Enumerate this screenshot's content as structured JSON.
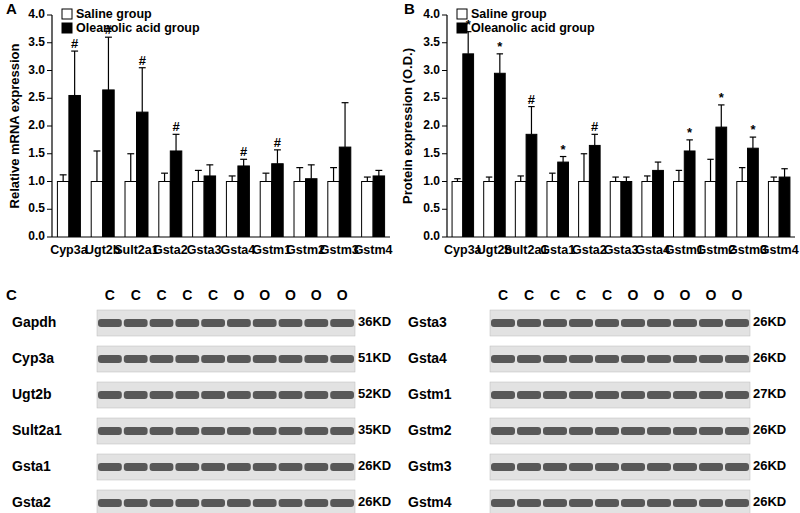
{
  "chart_data": [
    {
      "type": "bar",
      "title": "A",
      "ylabel": "Relative mRNA expression",
      "categories": [
        "Cyp3a",
        "Ugt2b",
        "Sult2a1",
        "Gsta2",
        "Gsta3",
        "Gsta4",
        "Gstm1",
        "Gstm2",
        "Gstm3",
        "Gstm4"
      ],
      "series": [
        {
          "name": "Saline group",
          "color": "#ffffff",
          "values": [
            1.0,
            1.0,
            1.0,
            1.0,
            1.0,
            1.0,
            1.0,
            1.0,
            1.0,
            1.0
          ],
          "errors": [
            0.12,
            0.55,
            0.5,
            0.15,
            0.2,
            0.1,
            0.15,
            0.25,
            0.25,
            0.08
          ]
        },
        {
          "name": "Oleanolic acid group",
          "color": "#000000",
          "values": [
            2.55,
            2.65,
            2.25,
            1.55,
            1.1,
            1.28,
            1.32,
            1.05,
            1.62,
            1.1
          ],
          "errors": [
            0.8,
            0.95,
            0.8,
            0.3,
            0.2,
            0.12,
            0.25,
            0.25,
            0.8,
            0.1
          ],
          "annotations": [
            "#",
            "#",
            "#",
            "#",
            null,
            "#",
            "#",
            null,
            null,
            null
          ]
        }
      ],
      "ylim": [
        0,
        4
      ],
      "yticks": [
        {
          "value": 0,
          "label": "0.0"
        },
        {
          "value": 0.5,
          "label": "0.5"
        },
        {
          "value": 1,
          "label": "1.0"
        },
        {
          "value": 1.5,
          "label": "1.5"
        },
        {
          "value": 2,
          "label": "2.0"
        },
        {
          "value": 2.5,
          "label": "2.5"
        },
        {
          "value": 3,
          "label": "3.0"
        },
        {
          "value": 3.5,
          "label": "3.5"
        },
        {
          "value": 4,
          "label": "4.0"
        }
      ],
      "legend": "upper left",
      "grid": false
    },
    {
      "type": "bar",
      "title": "B",
      "ylabel": "Protein expression (O.D.)",
      "categories": [
        "Cyp3a",
        "Ugt2b",
        "Sult2a1",
        "Gsta1",
        "Gsta2",
        "Gsta3",
        "Gsta4",
        "Gstm1",
        "Gstm2",
        "Gstm3",
        "Gstm4"
      ],
      "series": [
        {
          "name": "Saline group",
          "color": "#ffffff",
          "values": [
            1.0,
            1.0,
            1.0,
            1.0,
            1.0,
            1.0,
            1.0,
            1.0,
            1.0,
            1.0,
            1.0
          ],
          "errors": [
            0.05,
            0.08,
            0.1,
            0.15,
            0.5,
            0.08,
            0.1,
            0.2,
            0.4,
            0.25,
            0.08
          ]
        },
        {
          "name": "Oleanolic acid group",
          "color": "#000000",
          "values": [
            3.3,
            2.95,
            1.85,
            1.35,
            1.65,
            1.0,
            1.2,
            1.55,
            1.98,
            1.6,
            1.08
          ],
          "errors": [
            0.4,
            0.35,
            0.5,
            0.1,
            0.2,
            0.08,
            0.15,
            0.2,
            0.4,
            0.2,
            0.15
          ],
          "annotations": [
            "*",
            "*",
            "#",
            "*",
            "#",
            null,
            null,
            "*",
            "*",
            "*",
            null
          ]
        }
      ],
      "ylim": [
        0,
        4
      ],
      "yticks": [
        {
          "value": 0,
          "label": "0.0"
        },
        {
          "value": 0.5,
          "label": "0.5"
        },
        {
          "value": 1,
          "label": "1.0"
        },
        {
          "value": 1.5,
          "label": "1.5"
        },
        {
          "value": 2,
          "label": "2.0"
        },
        {
          "value": 2.5,
          "label": "2.5"
        },
        {
          "value": 3,
          "label": "3.0"
        },
        {
          "value": 3.5,
          "label": "3.5"
        },
        {
          "value": 4,
          "label": "4.0"
        }
      ],
      "legend": "upper left",
      "grid": false
    }
  ],
  "blot": {
    "label": "C",
    "panels": [
      {
        "lanes": [
          "C",
          "C",
          "C",
          "C",
          "C",
          "O",
          "O",
          "O",
          "O",
          "O"
        ],
        "rows": [
          {
            "name": "Gapdh",
            "size": "36KD"
          },
          {
            "name": "Cyp3a",
            "size": "51KD"
          },
          {
            "name": "Ugt2b",
            "size": "52KD"
          },
          {
            "name": "Sult2a1",
            "size": "35KD"
          },
          {
            "name": "Gsta1",
            "size": "26KD"
          },
          {
            "name": "Gsta2",
            "size": "26KD"
          }
        ]
      },
      {
        "lanes": [
          "C",
          "C",
          "C",
          "C",
          "C",
          "O",
          "O",
          "O",
          "O",
          "O"
        ],
        "rows": [
          {
            "name": "Gsta3",
            "size": "26KD"
          },
          {
            "name": "Gsta4",
            "size": "26KD"
          },
          {
            "name": "Gstm1",
            "size": "27KD"
          },
          {
            "name": "Gstm2",
            "size": "26KD"
          },
          {
            "name": "Gstm3",
            "size": "26KD"
          },
          {
            "name": "Gstm4",
            "size": "26KD"
          }
        ]
      }
    ]
  }
}
